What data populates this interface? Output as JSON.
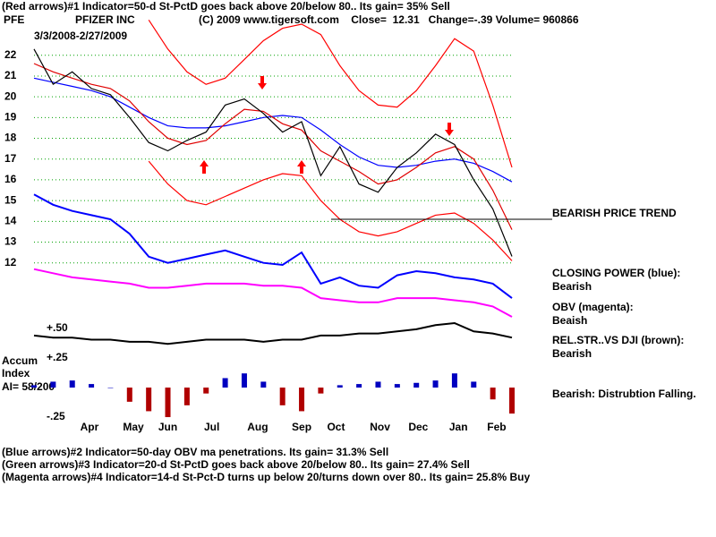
{
  "header": {
    "top_line": "(Red arrows)#1 Indicator=50-d St-PctD goes back above 20/below 80.. Its gain= 35% Sell",
    "symbol": "PFE",
    "company": "PFIZER INC",
    "info": "(C) 2009 www.tigersoft.com    Close=  12.31   Change=-.39 Volume= 960866",
    "date_range": "3/3/2008-2/27/2009"
  },
  "chart_data": {
    "type": "line",
    "grid": true,
    "grid_color": "#00a000",
    "x": [
      0,
      10,
      20,
      30,
      40,
      50,
      60,
      70,
      80,
      90,
      100,
      110,
      120,
      130,
      140,
      150,
      160,
      170,
      180,
      190,
      200,
      210,
      220,
      230,
      240,
      250
    ],
    "xlim": [
      0,
      250
    ],
    "xticks": [
      {
        "value": 29,
        "label": "Apr"
      },
      {
        "value": 52,
        "label": "May"
      },
      {
        "value": 70,
        "label": "Jun"
      },
      {
        "value": 93,
        "label": "Jul"
      },
      {
        "value": 117,
        "label": "Aug"
      },
      {
        "value": 140,
        "label": "Sep"
      },
      {
        "value": 158,
        "label": "Oct"
      },
      {
        "value": 181,
        "label": "Nov"
      },
      {
        "value": 201,
        "label": "Dec"
      },
      {
        "value": 222,
        "label": "Jan"
      },
      {
        "value": 242,
        "label": "Feb"
      }
    ],
    "ylim": [
      4.4,
      23.8
    ],
    "yticks": [
      12,
      13,
      14,
      15,
      16,
      17,
      18,
      19,
      20,
      21,
      22
    ],
    "y2lim": [
      -0.28,
      3.13
    ],
    "y2ticks": [
      {
        "value": 0.5,
        "label": "+.50"
      },
      {
        "value": 0.25,
        "label": "+.25"
      },
      {
        "value": -0.25,
        "label": "-.25"
      }
    ],
    "series": [
      {
        "color": "#ff0000",
        "values": [
          null,
          null,
          null,
          null,
          null,
          null,
          23.7,
          22.3,
          21.2,
          20.6,
          20.9,
          21.8,
          22.7,
          23.3,
          23.5,
          23.0,
          21.5,
          20.3,
          19.6,
          19.5,
          20.3,
          21.5,
          22.8,
          22.2,
          19.6,
          16.6
        ]
      },
      {
        "color": "#ff0000",
        "values": [
          null,
          null,
          null,
          null,
          null,
          null,
          16.9,
          15.8,
          15.0,
          14.8,
          15.2,
          15.6,
          16.0,
          16.3,
          16.2,
          15.0,
          14.1,
          13.5,
          13.3,
          13.5,
          13.9,
          14.3,
          14.4,
          13.9,
          13.1,
          12.1
        ]
      },
      {
        "color": "#0000ff",
        "values": [
          20.9,
          20.7,
          20.5,
          20.3,
          20.0,
          19.5,
          19.0,
          18.6,
          18.5,
          18.5,
          18.6,
          18.8,
          19.0,
          19.1,
          19.0,
          18.4,
          17.7,
          17.1,
          16.7,
          16.6,
          16.7,
          16.9,
          17.0,
          16.8,
          16.4,
          15.9
        ]
      },
      {
        "color": "#e00000",
        "values": [
          21.6,
          21.2,
          20.9,
          20.6,
          20.4,
          19.8,
          18.8,
          18.0,
          17.7,
          17.9,
          18.7,
          19.4,
          19.3,
          18.7,
          18.4,
          17.4,
          16.9,
          16.4,
          15.8,
          16.0,
          16.6,
          17.3,
          17.6,
          17.0,
          15.5,
          13.6
        ]
      },
      {
        "color": "#000000",
        "values": [
          22.3,
          20.6,
          21.2,
          20.4,
          20.1,
          19.0,
          17.8,
          17.4,
          17.9,
          18.3,
          19.6,
          19.9,
          19.2,
          18.3,
          18.8,
          16.2,
          17.6,
          15.8,
          15.4,
          16.6,
          17.3,
          18.2,
          17.7,
          16.0,
          14.6,
          12.31
        ]
      },
      {
        "color": "#0000ff",
        "values": [
          15.3,
          14.8,
          14.5,
          14.3,
          14.1,
          13.4,
          12.3,
          12.0,
          12.2,
          12.4,
          12.6,
          12.3,
          12.0,
          11.9,
          12.5,
          11.0,
          11.3,
          10.9,
          10.8,
          11.4,
          11.6,
          11.5,
          11.3,
          11.2,
          11.0,
          10.3
        ]
      },
      {
        "color": "#ff00ff",
        "values": [
          11.7,
          11.5,
          11.3,
          11.2,
          11.1,
          11.0,
          10.8,
          10.8,
          10.9,
          11.0,
          11.0,
          11.0,
          10.9,
          10.9,
          10.8,
          10.3,
          10.2,
          10.1,
          10.1,
          10.3,
          10.3,
          10.3,
          10.2,
          10.1,
          9.9,
          9.4
        ]
      },
      {
        "color": "#000000",
        "values": [
          8.5,
          8.4,
          8.4,
          8.3,
          8.3,
          8.2,
          8.2,
          8.1,
          8.2,
          8.3,
          8.3,
          8.3,
          8.2,
          8.3,
          8.3,
          8.5,
          8.5,
          8.6,
          8.6,
          8.7,
          8.8,
          9.0,
          9.1,
          8.7,
          8.6,
          8.4
        ]
      }
    ],
    "accum_index": {
      "type": "bar",
      "axis": "y2",
      "color_up": "#0000c0",
      "color_down": "#b00000",
      "values": [
        0.02,
        0.05,
        0.06,
        0.03,
        0.0,
        -0.12,
        -0.2,
        -0.25,
        -0.15,
        -0.05,
        0.08,
        0.12,
        0.05,
        -0.15,
        -0.2,
        -0.05,
        0.02,
        0.03,
        0.05,
        0.03,
        0.04,
        0.06,
        0.12,
        0.05,
        -0.1,
        -0.22
      ]
    },
    "trend_line": {
      "label": "BEARISH PRICE TREND",
      "value": 14.1
    },
    "annotations": [
      "CLOSING POWER (blue):",
      "Bearish",
      "OBV (magenta):",
      "Beaish",
      "REL.STR..VS DJI (brown):",
      "Bearish",
      "Bearish: Distrubtion Falling."
    ],
    "accum_labels": [
      "Accum",
      "Index",
      "AI= 58/200"
    ]
  },
  "footer": [
    "(Blue arrows)#2 Indicator=50-day OBV ma penetrations. Its gain= 31.3% Sell",
    "(Green arrows)#3 Indicator=20-d St-PctD goes back above 20/below 80.. Its gain= 27.4% Sell",
    "(Magenta arrows)#4 Indicator=14-d St-Pct-D turns up below 20/turns down over 80.. Its gain= 25.8% Buy"
  ]
}
